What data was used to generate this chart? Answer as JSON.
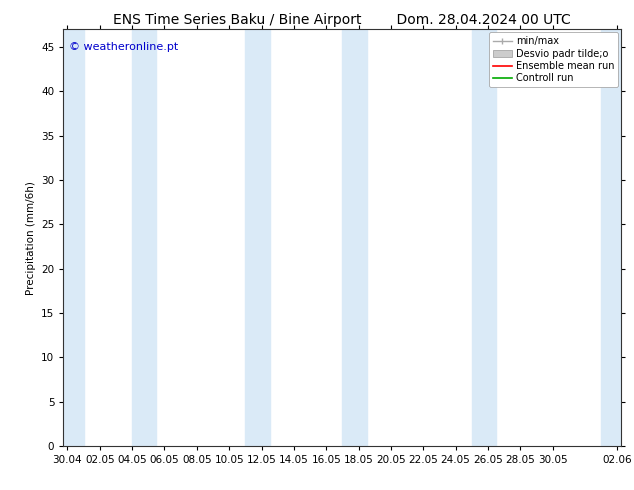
{
  "title_left": "ENS Time Series Baku / Bine Airport",
  "title_right": "Dom. 28.04.2024 00 UTC",
  "ylabel": "Precipitation (mm/6h)",
  "watermark": "© weatheronline.pt",
  "xlim_start": -0.25,
  "xlim_end": 34.25,
  "ylim": [
    0,
    47
  ],
  "yticks": [
    0,
    5,
    10,
    15,
    20,
    25,
    30,
    35,
    40,
    45
  ],
  "xtick_labels": [
    "30.04",
    "02.05",
    "04.05",
    "06.05",
    "08.05",
    "10.05",
    "12.05",
    "14.05",
    "16.05",
    "18.05",
    "20.05",
    "22.05",
    "24.05",
    "26.05",
    "28.05",
    "30.05",
    "02.06"
  ],
  "xtick_positions": [
    0,
    2,
    4,
    6,
    8,
    10,
    12,
    14,
    16,
    18,
    20,
    22,
    24,
    26,
    28,
    30,
    34
  ],
  "shade_bands": [
    [
      -0.25,
      1.0
    ],
    [
      4.0,
      5.5
    ],
    [
      11.0,
      12.5
    ],
    [
      17.0,
      18.5
    ],
    [
      25.0,
      26.5
    ],
    [
      33.0,
      34.25
    ]
  ],
  "shade_color": "#daeaf7",
  "bg_color": "#ffffff",
  "legend_labels": [
    "min/max",
    "Desvio padr tilde;o",
    "Ensemble mean run",
    "Controll run"
  ],
  "minmax_color": "#aaaaaa",
  "stdev_color": "#cccccc",
  "ensemble_color": "#ff0000",
  "control_color": "#00aa00",
  "title_fontsize": 10,
  "axis_fontsize": 7.5,
  "legend_fontsize": 7,
  "watermark_color": "#0000cc",
  "watermark_fontsize": 8
}
